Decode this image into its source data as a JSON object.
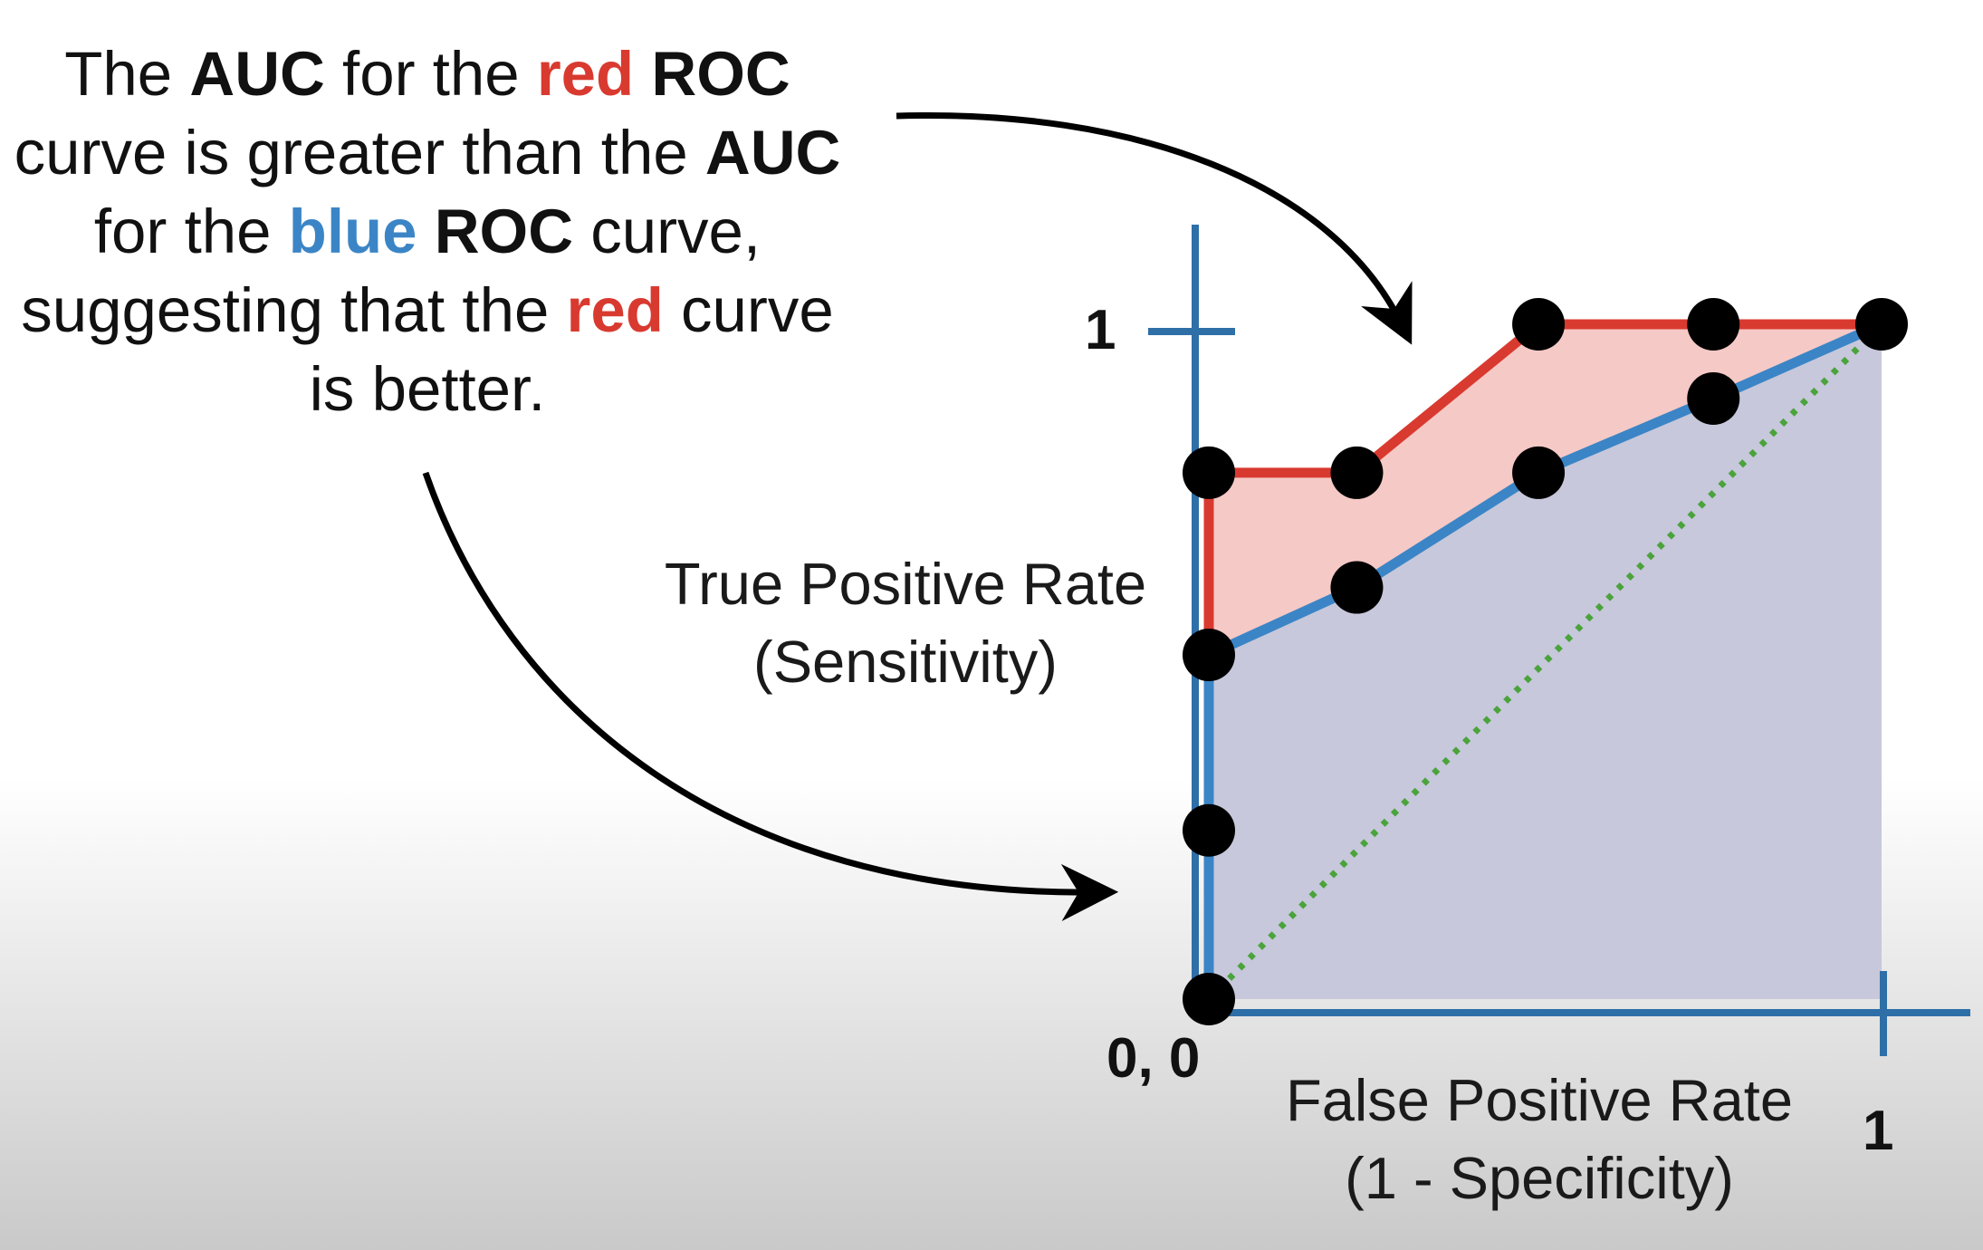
{
  "caption": {
    "line1": [
      "The ",
      "AUC",
      " for the ",
      "red",
      " ",
      "ROC"
    ],
    "line2": [
      "curve is greater than the ",
      "AUC"
    ],
    "line3": [
      "for the ",
      "blue",
      " ",
      "ROC",
      " curve,"
    ],
    "line4": [
      "suggesting that the ",
      "red",
      " curve"
    ],
    "line5": [
      "is better."
    ]
  },
  "colors": {
    "red": "#d93a30",
    "blue": "#3b85c6",
    "axis": "#2f6fa8",
    "red_fill": "#f5c9c6",
    "blue_fill": "#c7c8db",
    "diagonal": "#4aa33b",
    "point": "#000000"
  },
  "chart_data": {
    "type": "line",
    "xlabel_line1": "False Positive Rate",
    "xlabel_line2": "(1 - Specificity)",
    "ylabel_line1": "True Positive Rate",
    "ylabel_line2": "(Sensitivity)",
    "origin_label": "0, 0",
    "x_tick_label": "1",
    "y_tick_label": "1",
    "xlim": [
      0,
      1
    ],
    "ylim": [
      0,
      1
    ],
    "series": [
      {
        "color": "red",
        "x": [
          0,
          0,
          0.22,
          0.49,
          0.75,
          1
        ],
        "y": [
          0,
          0.78,
          0.78,
          1,
          1,
          1
        ]
      },
      {
        "color": "blue",
        "x": [
          0,
          0,
          0.22,
          0.49,
          0.75,
          1
        ],
        "y": [
          0,
          0.51,
          0.61,
          0.78,
          0.89,
          1
        ]
      }
    ],
    "points": [
      {
        "x": 0,
        "y": 0
      },
      {
        "x": 0,
        "y": 0.25
      },
      {
        "x": 0,
        "y": 0.51
      },
      {
        "x": 0,
        "y": 0.78
      },
      {
        "x": 0.22,
        "y": 0.78
      },
      {
        "x": 0.22,
        "y": 0.61
      },
      {
        "x": 0.49,
        "y": 1
      },
      {
        "x": 0.49,
        "y": 0.78
      },
      {
        "x": 0.75,
        "y": 1
      },
      {
        "x": 0.75,
        "y": 0.89
      },
      {
        "x": 1,
        "y": 1
      }
    ],
    "reference_line": {
      "x": [
        0,
        1
      ],
      "y": [
        0,
        1
      ],
      "style": "dotted"
    }
  }
}
